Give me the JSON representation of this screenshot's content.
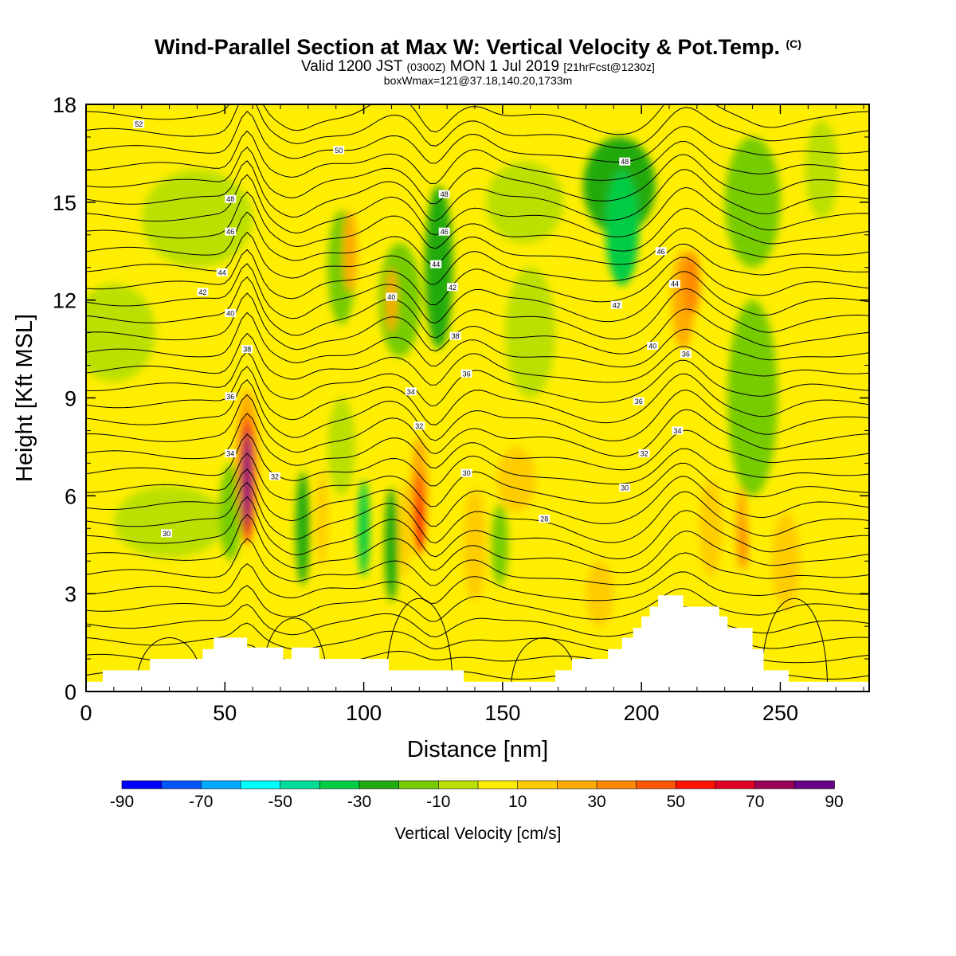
{
  "header": {
    "title": "Wind-Parallel Section at Max W: Vertical Velocity & Pot.Temp.",
    "title_mark": "(C)",
    "valid_prefix": "Valid 1200 JST",
    "valid_utc": "(0300Z)",
    "valid_date": "MON 1 Jul 2019",
    "forecast": "[21hrFcst@1230z]",
    "box_info": "boxWmax=121@37.18,140.20,1733m"
  },
  "chart_data": {
    "type": "heatmap",
    "xlabel": "Distance [nm]",
    "ylabel": "Height [Kft MSL]",
    "xlim": [
      0,
      282
    ],
    "ylim": [
      0,
      18
    ],
    "x_ticks": [
      "0",
      "50",
      "100",
      "150",
      "200",
      "250"
    ],
    "y_ticks": [
      "0",
      "3",
      "6",
      "9",
      "12",
      "15",
      "18"
    ],
    "colorbar": {
      "label": "Vertical Velocity [cm/s]",
      "min": -90,
      "max": 90,
      "step": 10,
      "tick_labels": [
        "-90",
        "-70",
        "-50",
        "-30",
        "-10",
        "10",
        "30",
        "50",
        "70",
        "90"
      ],
      "colors": [
        "#0000ff",
        "#0055ff",
        "#00aaff",
        "#00ffff",
        "#00dd99",
        "#00cc44",
        "#22aa11",
        "#77cc00",
        "#bbe000",
        "#ffee00",
        "#ffcc00",
        "#ffaa00",
        "#ff8800",
        "#ff5500",
        "#ff1100",
        "#dd0022",
        "#990055",
        "#660088"
      ]
    },
    "contour_labels": [
      {
        "text": "30",
        "x": 29,
        "y": 4.85
      },
      {
        "text": "30",
        "x": 137,
        "y": 6.7
      },
      {
        "text": "30",
        "x": 194,
        "y": 6.25
      },
      {
        "text": "28",
        "x": 165,
        "y": 5.3
      },
      {
        "text": "32",
        "x": 68,
        "y": 6.6
      },
      {
        "text": "32",
        "x": 120,
        "y": 8.15
      },
      {
        "text": "32",
        "x": 201,
        "y": 7.3
      },
      {
        "text": "34",
        "x": 52,
        "y": 7.3
      },
      {
        "text": "34",
        "x": 117,
        "y": 9.2
      },
      {
        "text": "34",
        "x": 213,
        "y": 8.0
      },
      {
        "text": "36",
        "x": 52,
        "y": 9.05
      },
      {
        "text": "36",
        "x": 137,
        "y": 9.75
      },
      {
        "text": "36",
        "x": 199,
        "y": 8.9
      },
      {
        "text": "36",
        "x": 216,
        "y": 10.35
      },
      {
        "text": "38",
        "x": 58,
        "y": 10.5
      },
      {
        "text": "38",
        "x": 133,
        "y": 10.9
      },
      {
        "text": "40",
        "x": 52,
        "y": 11.6
      },
      {
        "text": "40",
        "x": 110,
        "y": 12.1
      },
      {
        "text": "40",
        "x": 204,
        "y": 10.6
      },
      {
        "text": "42",
        "x": 42,
        "y": 12.25
      },
      {
        "text": "42",
        "x": 132,
        "y": 12.4
      },
      {
        "text": "42",
        "x": 191,
        "y": 11.85
      },
      {
        "text": "44",
        "x": 49,
        "y": 12.85
      },
      {
        "text": "44",
        "x": 126,
        "y": 13.1
      },
      {
        "text": "44",
        "x": 212,
        "y": 12.5
      },
      {
        "text": "46",
        "x": 52,
        "y": 14.1
      },
      {
        "text": "46",
        "x": 129,
        "y": 14.1
      },
      {
        "text": "46",
        "x": 207,
        "y": 13.5
      },
      {
        "text": "48",
        "x": 52,
        "y": 15.1
      },
      {
        "text": "48",
        "x": 129,
        "y": 15.25
      },
      {
        "text": "48",
        "x": 194,
        "y": 16.25
      },
      {
        "text": "50",
        "x": 91,
        "y": 16.6
      },
      {
        "text": "52",
        "x": 19,
        "y": 17.4
      }
    ],
    "terrain_profile": [
      [
        0,
        0.3
      ],
      [
        6,
        0.3
      ],
      [
        6,
        0.65
      ],
      [
        23,
        0.65
      ],
      [
        23,
        1.0
      ],
      [
        42,
        1.0
      ],
      [
        42,
        1.3
      ],
      [
        46,
        1.3
      ],
      [
        46,
        1.65
      ],
      [
        58,
        1.65
      ],
      [
        58,
        1.35
      ],
      [
        71,
        1.35
      ],
      [
        71,
        1.0
      ],
      [
        74,
        1.0
      ],
      [
        74,
        1.35
      ],
      [
        84,
        1.35
      ],
      [
        84,
        1.0
      ],
      [
        109,
        1.0
      ],
      [
        109,
        0.65
      ],
      [
        136,
        0.65
      ],
      [
        136,
        0.3
      ],
      [
        169,
        0.3
      ],
      [
        169,
        0.65
      ],
      [
        175,
        0.65
      ],
      [
        175,
        1.0
      ],
      [
        188,
        1.0
      ],
      [
        188,
        1.3
      ],
      [
        193,
        1.3
      ],
      [
        193,
        1.65
      ],
      [
        197,
        1.65
      ],
      [
        197,
        1.95
      ],
      [
        200,
        1.95
      ],
      [
        200,
        2.3
      ],
      [
        203,
        2.3
      ],
      [
        203,
        2.6
      ],
      [
        206,
        2.6
      ],
      [
        206,
        2.95
      ],
      [
        215,
        2.95
      ],
      [
        215,
        2.6
      ],
      [
        228,
        2.6
      ],
      [
        228,
        2.3
      ],
      [
        231,
        2.3
      ],
      [
        231,
        1.95
      ],
      [
        240,
        1.95
      ],
      [
        240,
        1.3
      ],
      [
        244,
        1.3
      ],
      [
        244,
        0.65
      ],
      [
        253,
        0.65
      ],
      [
        253,
        0.3
      ],
      [
        282,
        0.3
      ]
    ]
  }
}
